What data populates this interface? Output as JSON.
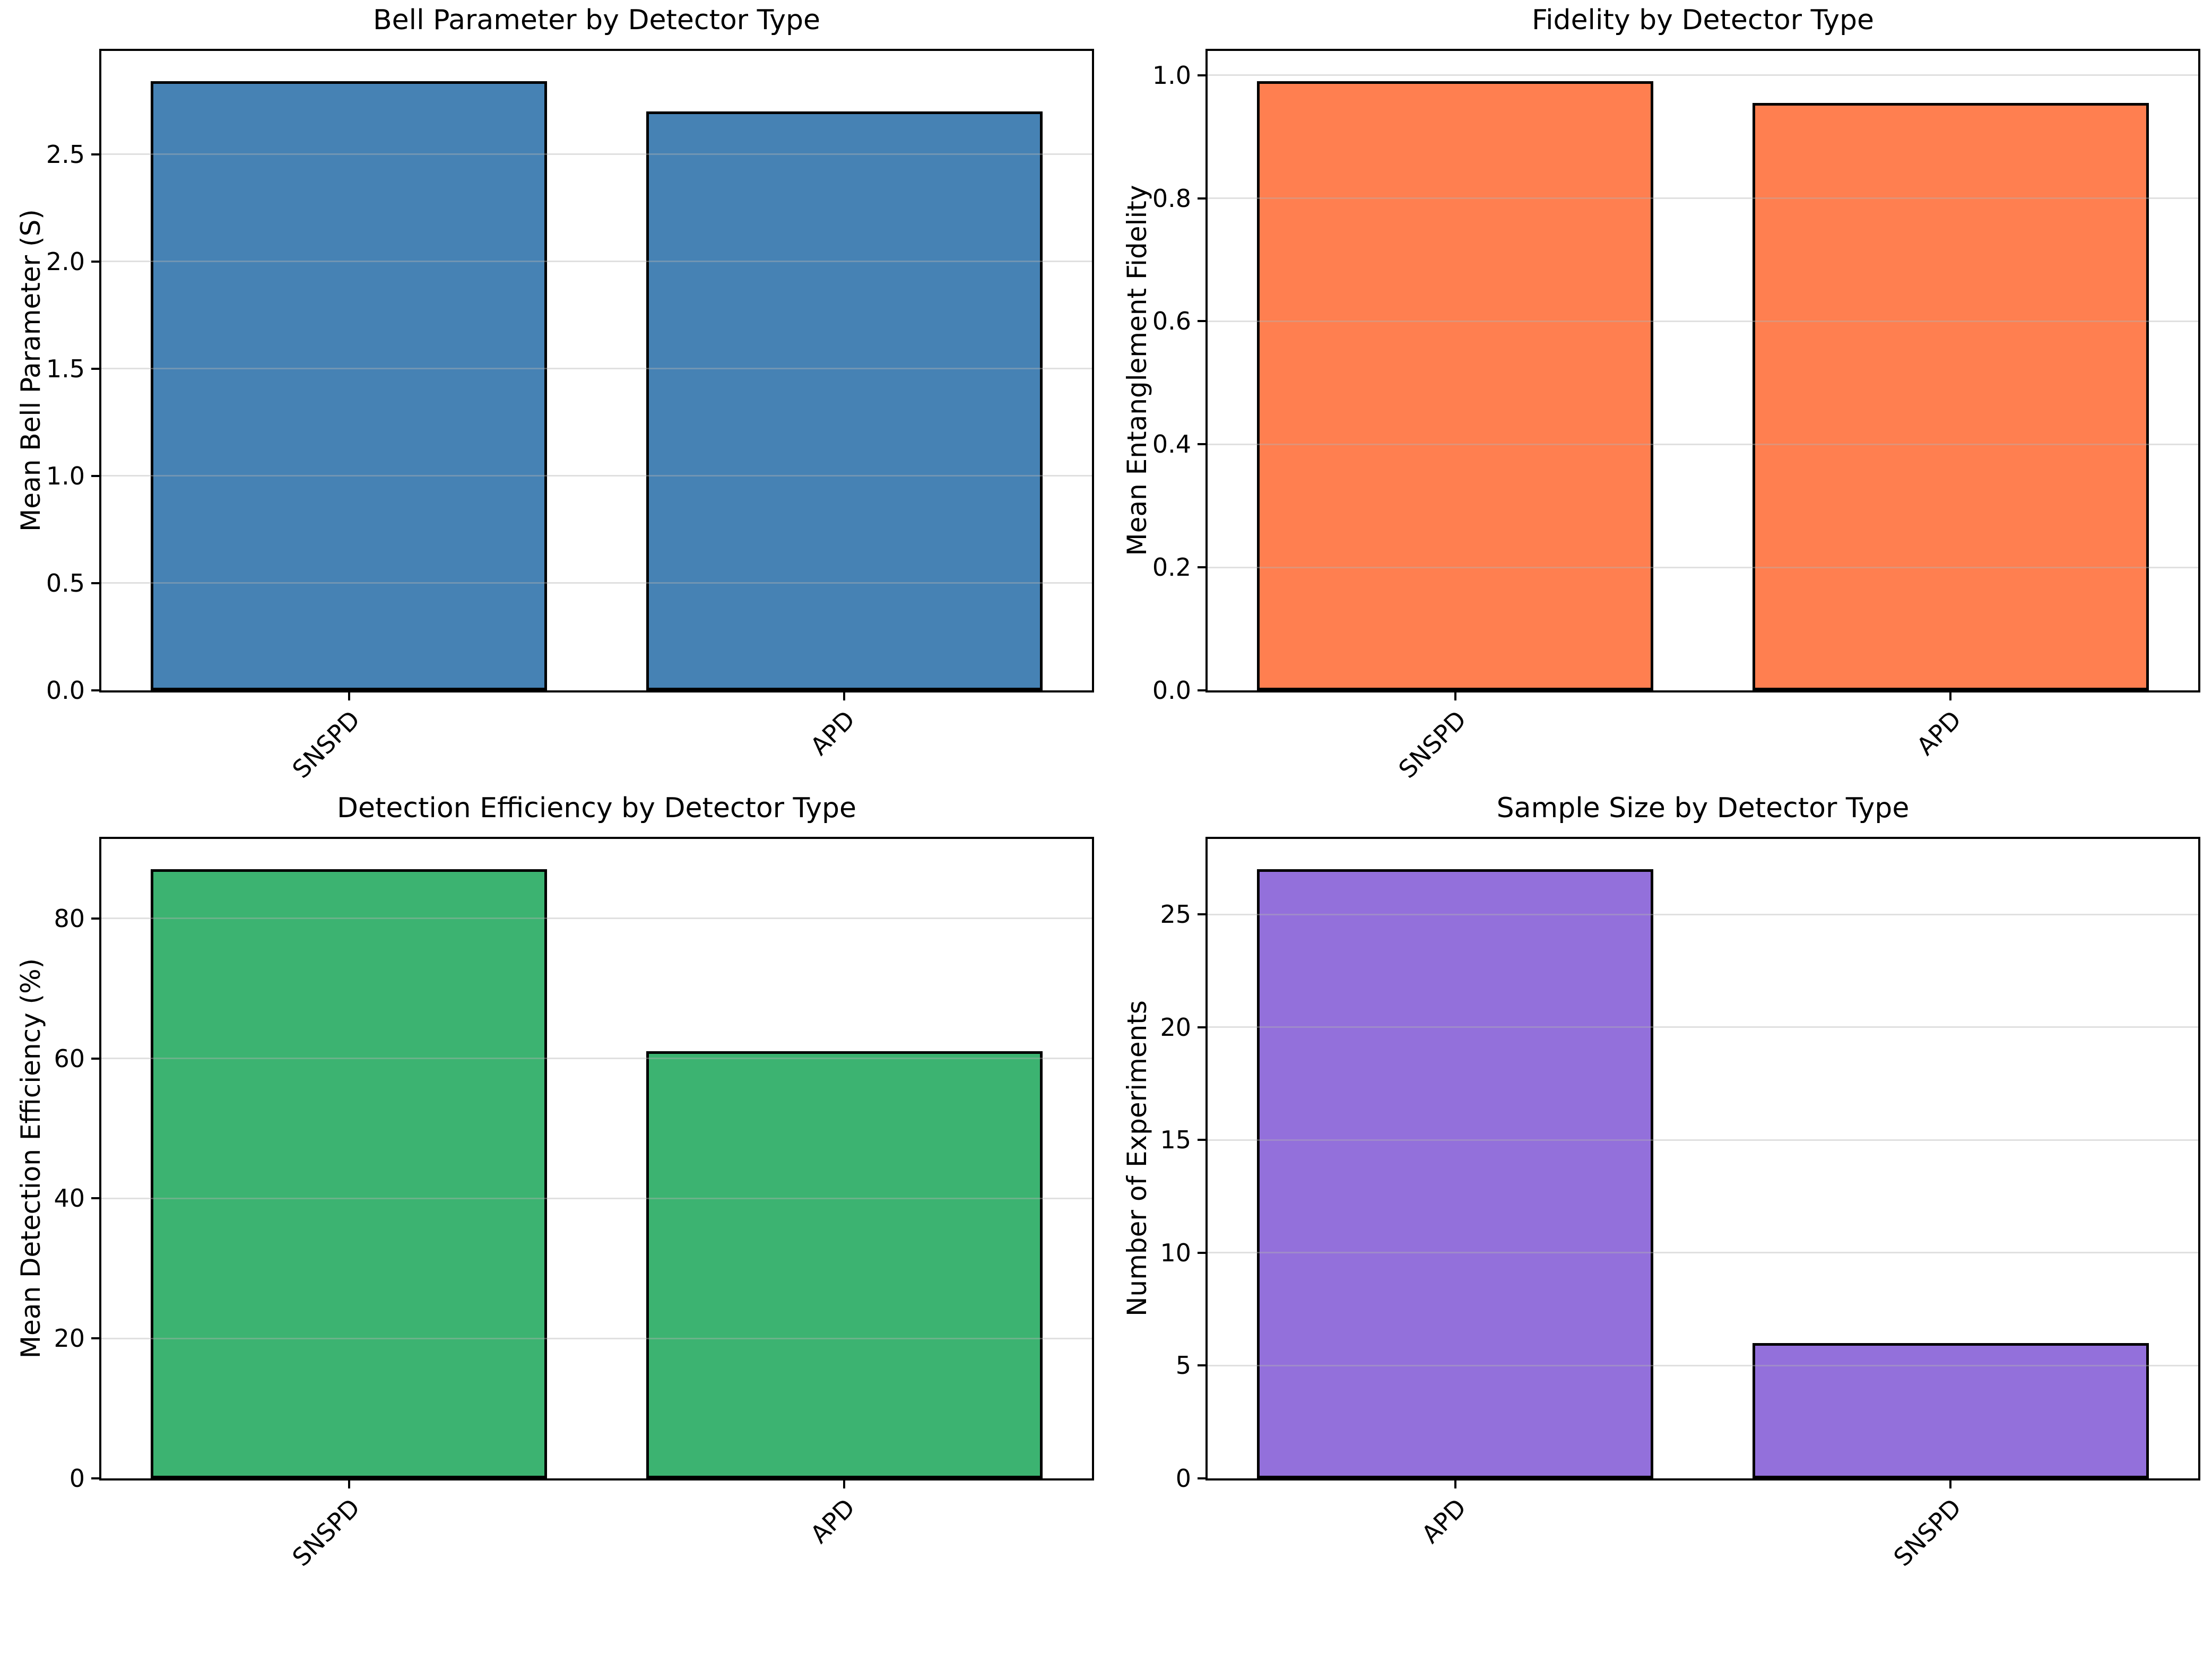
{
  "figure": {
    "background_color": "#ffffff",
    "grid_color": "#b2b2b2",
    "spine_color": "#000000"
  },
  "chart_data": [
    {
      "type": "bar",
      "title": "Bell Parameter by Detector Type",
      "xlabel": "",
      "ylabel": "Mean Bell Parameter (S)",
      "categories": [
        "SNSPD",
        "APD"
      ],
      "values": [
        2.84,
        2.7
      ],
      "bar_color": "#4682B4",
      "edge_color": "#000000",
      "ylim": [
        0,
        2.982
      ],
      "grid": true,
      "legend": null,
      "yticks": [
        {
          "value": 0.0,
          "label": "0.0"
        },
        {
          "value": 0.5,
          "label": "0.5"
        },
        {
          "value": 1.0,
          "label": "1.0"
        },
        {
          "value": 1.5,
          "label": "1.5"
        },
        {
          "value": 2.0,
          "label": "2.0"
        },
        {
          "value": 2.5,
          "label": "2.5"
        }
      ]
    },
    {
      "type": "bar",
      "title": "Fidelity by Detector Type",
      "xlabel": "",
      "ylabel": "Mean Entanglement Fidelity",
      "categories": [
        "SNSPD",
        "APD"
      ],
      "values": [
        0.99,
        0.955
      ],
      "bar_color": "#FF7F50",
      "edge_color": "#000000",
      "ylim": [
        0,
        1.0395
      ],
      "grid": true,
      "legend": null,
      "yticks": [
        {
          "value": 0.0,
          "label": "0.0"
        },
        {
          "value": 0.2,
          "label": "0.2"
        },
        {
          "value": 0.4,
          "label": "0.4"
        },
        {
          "value": 0.6,
          "label": "0.6"
        },
        {
          "value": 0.8,
          "label": "0.8"
        },
        {
          "value": 1.0,
          "label": "1.0"
        }
      ]
    },
    {
      "type": "bar",
      "title": "Detection Efficiency by Detector Type",
      "xlabel": "",
      "ylabel": "Mean Detection Efficiency (%)",
      "categories": [
        "SNSPD",
        "APD"
      ],
      "values": [
        87,
        61
      ],
      "bar_color": "#3CB371",
      "edge_color": "#000000",
      "ylim": [
        0,
        91.35
      ],
      "grid": true,
      "legend": null,
      "yticks": [
        {
          "value": 0,
          "label": "0"
        },
        {
          "value": 20,
          "label": "20"
        },
        {
          "value": 40,
          "label": "40"
        },
        {
          "value": 60,
          "label": "60"
        },
        {
          "value": 80,
          "label": "80"
        }
      ]
    },
    {
      "type": "bar",
      "title": "Sample Size by Detector Type",
      "xlabel": "",
      "ylabel": "Number of Experiments",
      "categories": [
        "APD",
        "SNSPD"
      ],
      "values": [
        27,
        6
      ],
      "bar_color": "#9370DB",
      "edge_color": "#000000",
      "ylim": [
        0,
        28.35
      ],
      "grid": true,
      "legend": null,
      "yticks": [
        {
          "value": 0,
          "label": "0"
        },
        {
          "value": 5,
          "label": "5"
        },
        {
          "value": 10,
          "label": "10"
        },
        {
          "value": 15,
          "label": "15"
        },
        {
          "value": 20,
          "label": "20"
        },
        {
          "value": 25,
          "label": "25"
        }
      ]
    }
  ]
}
